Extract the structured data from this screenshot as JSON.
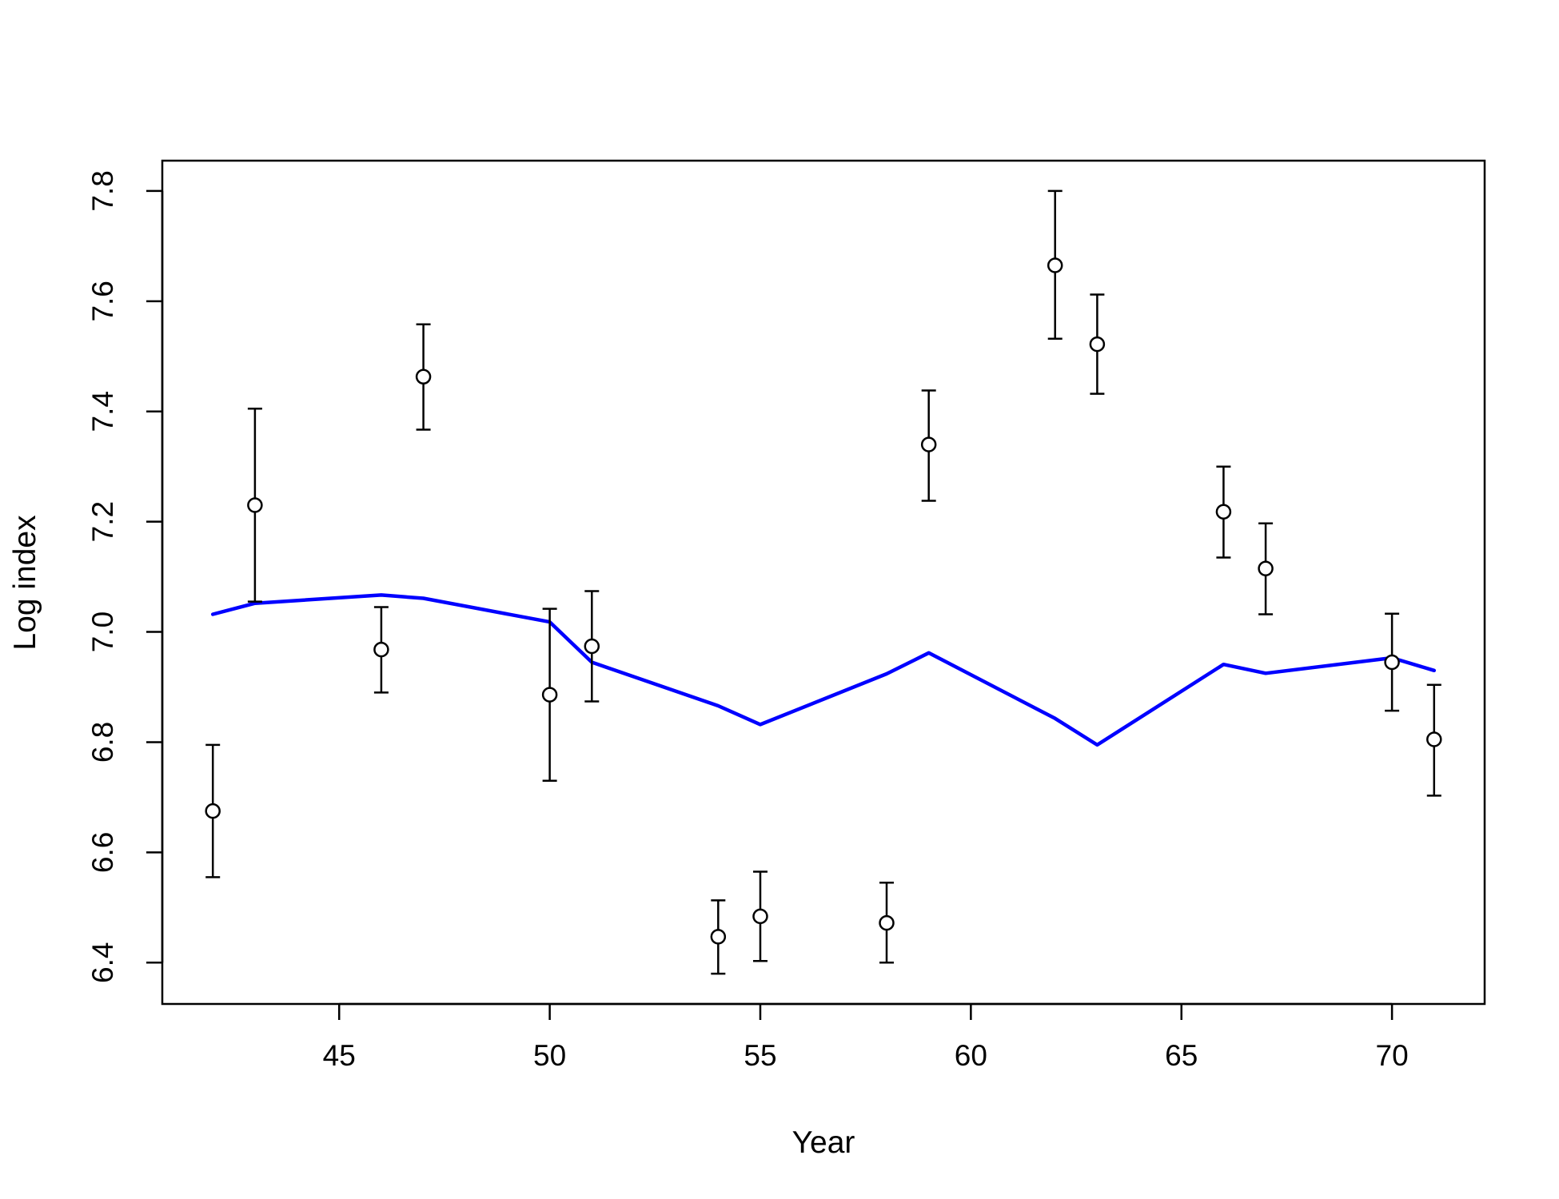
{
  "chart_data": {
    "type": "scatter",
    "xlabel": "Year",
    "ylabel": "Log index",
    "xlim": [
      40.8,
      72.2
    ],
    "ylim": [
      6.325,
      7.855
    ],
    "xticks": [
      45,
      50,
      55,
      60,
      65,
      70
    ],
    "yticks": [
      6.4,
      6.6,
      6.8,
      7.0,
      7.2,
      7.4,
      7.6,
      7.8
    ],
    "grid": false,
    "legend": "none",
    "colors": {
      "fit_line": "#0000ff",
      "points": "#000000",
      "background": "#ffffff"
    },
    "series": [
      {
        "kind": "points-with-error-bars",
        "points": [
          {
            "x": 42,
            "y": 6.675,
            "lo": 6.555,
            "hi": 6.795
          },
          {
            "x": 43,
            "y": 7.23,
            "lo": 7.055,
            "hi": 7.405
          },
          {
            "x": 46,
            "y": 6.968,
            "lo": 6.89,
            "hi": 7.045
          },
          {
            "x": 47,
            "y": 7.463,
            "lo": 7.367,
            "hi": 7.558
          },
          {
            "x": 50,
            "y": 6.886,
            "lo": 6.73,
            "hi": 7.042
          },
          {
            "x": 51,
            "y": 6.974,
            "lo": 6.874,
            "hi": 7.074
          },
          {
            "x": 54,
            "y": 6.447,
            "lo": 6.38,
            "hi": 6.513
          },
          {
            "x": 55,
            "y": 6.484,
            "lo": 6.403,
            "hi": 6.565
          },
          {
            "x": 58,
            "y": 6.472,
            "lo": 6.4,
            "hi": 6.545
          },
          {
            "x": 59,
            "y": 7.34,
            "lo": 7.238,
            "hi": 7.438
          },
          {
            "x": 62,
            "y": 7.665,
            "lo": 7.532,
            "hi": 7.8
          },
          {
            "x": 63,
            "y": 7.522,
            "lo": 7.432,
            "hi": 7.612
          },
          {
            "x": 66,
            "y": 7.218,
            "lo": 7.135,
            "hi": 7.3
          },
          {
            "x": 67,
            "y": 7.115,
            "lo": 7.032,
            "hi": 7.197
          },
          {
            "x": 70,
            "y": 6.945,
            "lo": 6.857,
            "hi": 7.033
          },
          {
            "x": 71,
            "y": 6.805,
            "lo": 6.703,
            "hi": 6.904
          }
        ]
      },
      {
        "kind": "line",
        "x": [
          42,
          43,
          46,
          47,
          50,
          51,
          54,
          55,
          58,
          59,
          62,
          63,
          66,
          67,
          70,
          71
        ],
        "y": [
          7.032,
          7.052,
          7.067,
          7.061,
          7.018,
          6.945,
          6.866,
          6.832,
          6.924,
          6.962,
          6.843,
          6.795,
          6.941,
          6.925,
          6.953,
          6.93
        ]
      }
    ]
  }
}
